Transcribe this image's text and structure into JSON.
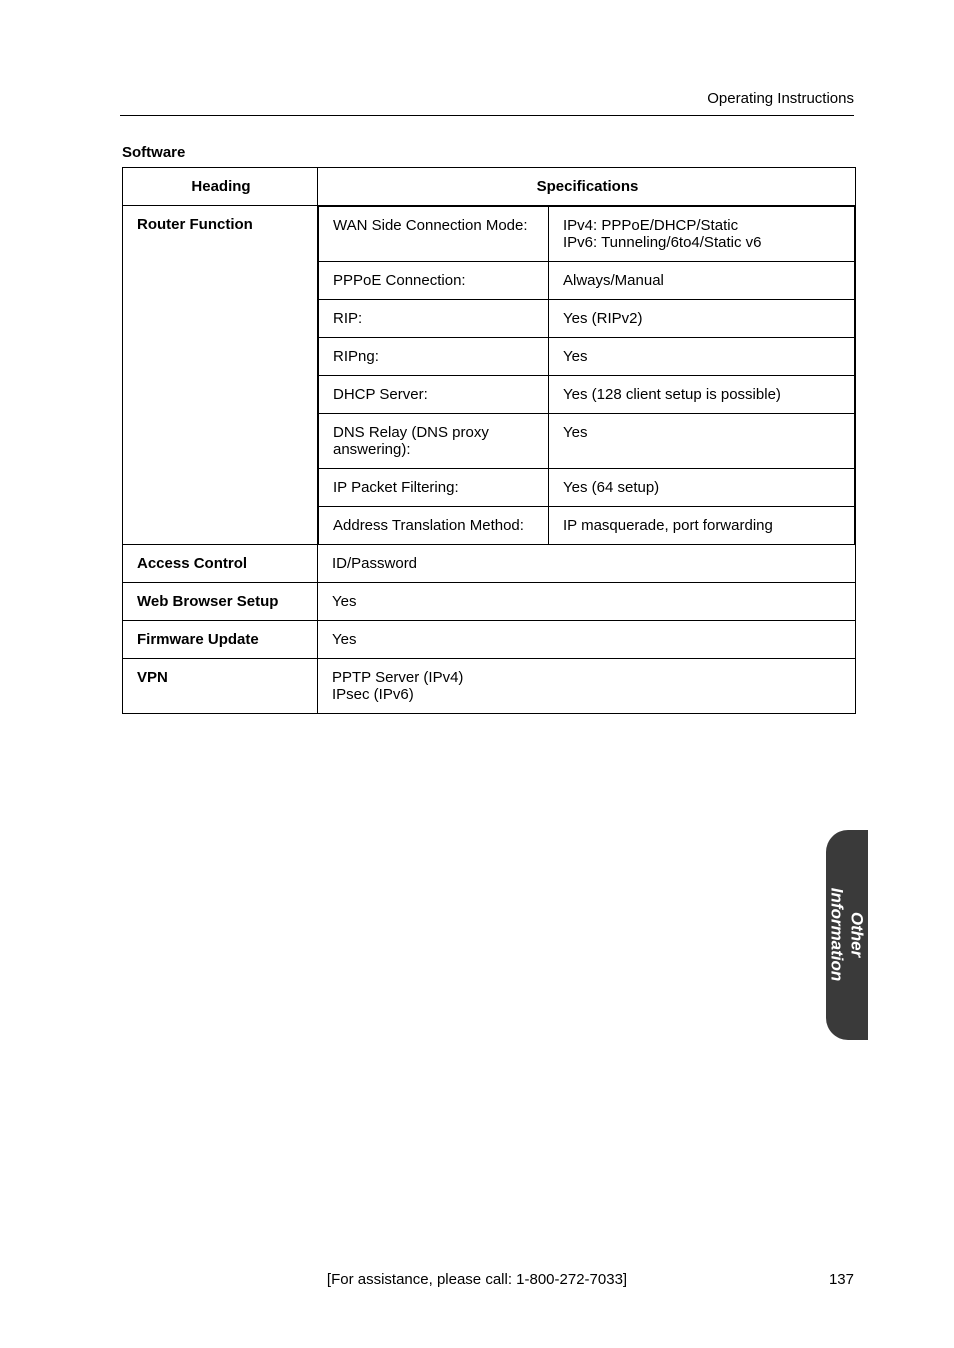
{
  "top_header": "Operating Instructions",
  "section_title": "Software",
  "table": {
    "headers": [
      "Heading",
      "Specifications"
    ],
    "rows": [
      {
        "heading": "Router Function",
        "inner": [
          {
            "label": "WAN Side Connection Mode:",
            "value": "IPv4: PPPoE/DHCP/Static\nIPv6: Tunneling/6to4/Static v6"
          },
          {
            "label": "PPPoE Connection:",
            "value": "Always/Manual"
          },
          {
            "label": "RIP:",
            "value": "Yes (RIPv2)"
          },
          {
            "label": "RIPng:",
            "value": "Yes"
          },
          {
            "label": "DHCP Server:",
            "value": "Yes (128 client setup is possible)"
          },
          {
            "label": "DNS Relay (DNS proxy answering):",
            "value": "Yes"
          },
          {
            "label": "IP Packet Filtering:",
            "value": "Yes (64 setup)"
          },
          {
            "label": "Address Translation Method:",
            "value": "IP masquerade, port forwarding"
          }
        ]
      },
      {
        "heading": "Access Control",
        "spec": "ID/Password"
      },
      {
        "heading": "Web Browser Setup",
        "spec": "Yes"
      },
      {
        "heading": "Firmware Update",
        "spec": "Yes"
      },
      {
        "heading": "VPN",
        "spec": "PPTP Server (IPv4)\nIPsec (IPv6)"
      }
    ]
  },
  "side_tab": {
    "line1": "Other",
    "line2": "Information",
    "bg_color": "#3a3a3a",
    "text_color": "#ffffff"
  },
  "footer": {
    "center": "[For assistance, please call: 1-800-272-7033]",
    "page": "137"
  },
  "colors": {
    "text": "#000000",
    "background": "#ffffff",
    "border": "#000000"
  },
  "fonts": {
    "body_size": 15,
    "side_tab_size": 17
  }
}
